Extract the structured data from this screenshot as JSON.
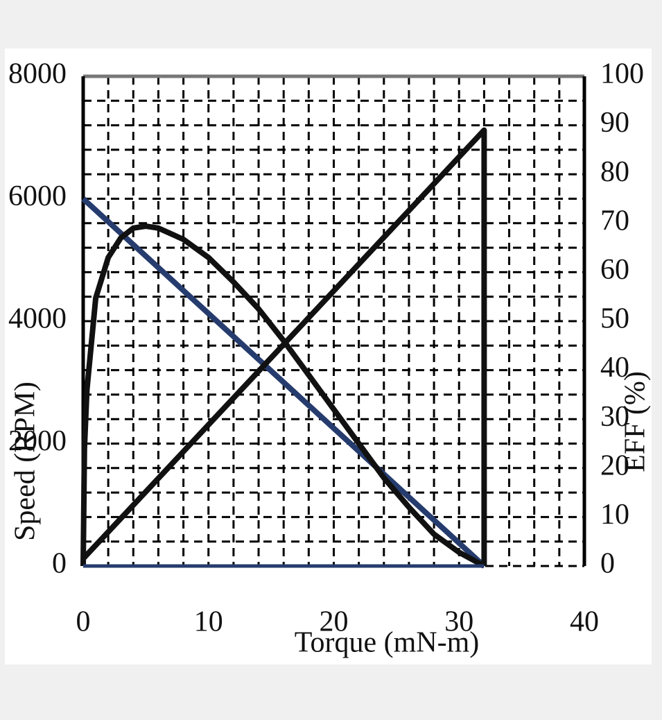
{
  "chart_data": {
    "type": "line",
    "x_label": "Torque (mN-m)",
    "y_label": "Speed (RPM)",
    "y2_label": "EFF (%)",
    "xlim": [
      0,
      40
    ],
    "xticks": [
      0,
      10,
      20,
      30,
      40
    ],
    "ylim": [
      0,
      8000
    ],
    "yticks": [
      0,
      2000,
      4000,
      6000,
      8000
    ],
    "y2lim": [
      0,
      100
    ],
    "y2ticks": [
      0,
      10,
      20,
      30,
      40,
      50,
      60,
      70,
      80,
      90,
      100
    ],
    "grid": true,
    "grid_xstep": 2,
    "grid_ystep": 400,
    "series": [
      {
        "color": "#263c6e",
        "x": [
          0,
          32
        ],
        "values": [
          6000,
          0
        ]
      },
      {
        "color": "#111111",
        "axis": "y2",
        "x": [
          0,
          0.1,
          0.3,
          1,
          2,
          3,
          4,
          5,
          6,
          8,
          10,
          12,
          14,
          16,
          18,
          20,
          22,
          24,
          26,
          28,
          30,
          32
        ],
        "values": [
          0,
          24,
          36,
          54.7,
          63,
          67,
          69,
          69.4,
          69,
          66.7,
          63,
          58,
          52.5,
          46,
          39,
          32,
          25,
          18,
          12,
          6.5,
          2.8,
          0
        ]
      },
      {
        "color": "#111111",
        "axis": "y2",
        "x": [
          0,
          32,
          32
        ],
        "values": [
          1.5,
          89,
          0
        ]
      }
    ]
  }
}
